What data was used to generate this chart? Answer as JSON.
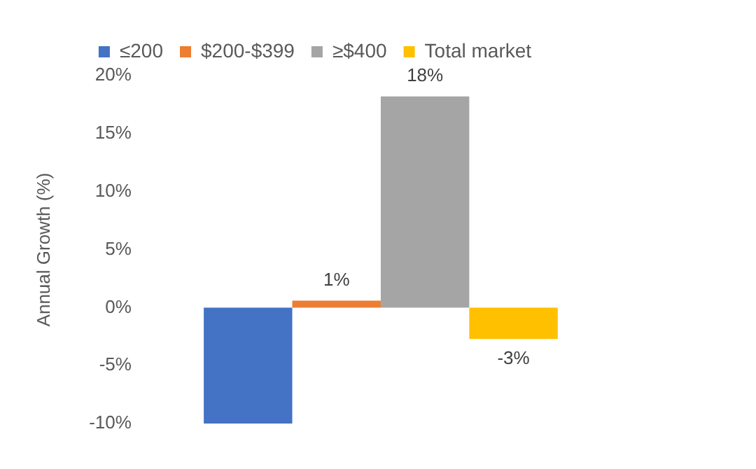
{
  "chart_data": {
    "type": "bar",
    "ylabel": "Annual Growth (%)",
    "categories": [
      null
    ],
    "series": [
      {
        "name": "≤200",
        "color": "#4472c4",
        "values": [
          -10
        ],
        "value_labels": [
          null
        ]
      },
      {
        "name": "$200-$399",
        "color": "#ed7d31",
        "values": [
          0.6
        ],
        "value_labels": [
          "1%"
        ]
      },
      {
        "name": "≥$400",
        "color": "#a5a5a5",
        "values": [
          18.2
        ],
        "value_labels": [
          "18%"
        ]
      },
      {
        "name": "Total market",
        "color": "#ffc000",
        "values": [
          -2.7
        ],
        "value_labels": [
          "-3%"
        ]
      }
    ],
    "ylim": [
      -10,
      20
    ],
    "yticks": [
      {
        "value": -10,
        "label": "-10%"
      },
      {
        "value": -5,
        "label": "-5%"
      },
      {
        "value": 0,
        "label": "0%"
      },
      {
        "value": 5,
        "label": "5%"
      },
      {
        "value": 10,
        "label": "10%"
      },
      {
        "value": 15,
        "label": "15%"
      },
      {
        "value": 20,
        "label": "20%"
      }
    ],
    "grid": false,
    "legend": "top"
  }
}
